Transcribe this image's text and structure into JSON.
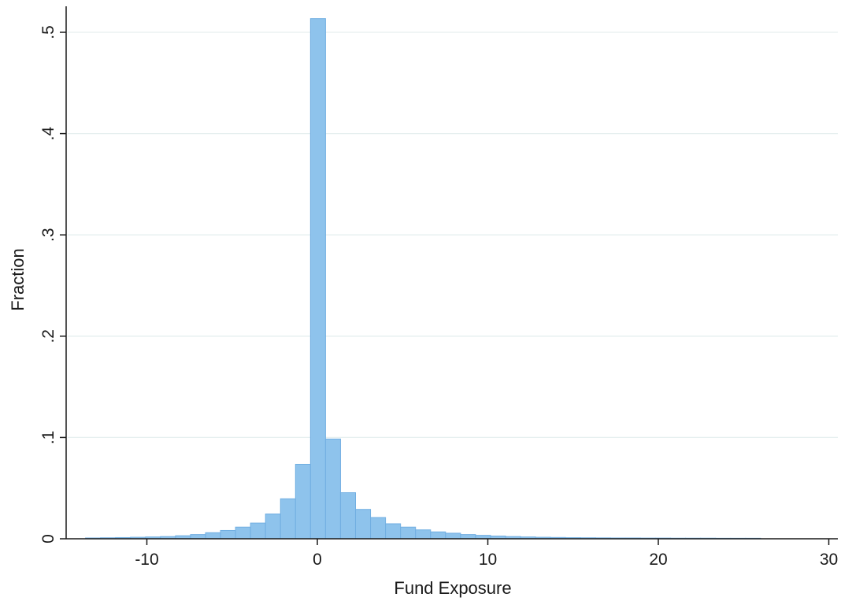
{
  "chart_data": {
    "type": "bar",
    "xlabel": "Fund Exposure",
    "ylabel": "Fraction",
    "xlim": [
      -14.1,
      30.4
    ],
    "ylim": [
      0,
      0.5
    ],
    "x_ticks": [
      -10,
      0,
      10,
      20,
      30
    ],
    "x_tick_labels": [
      "-10",
      "0",
      "10",
      "20",
      "30"
    ],
    "y_ticks": [
      0,
      0.1,
      0.2,
      0.3,
      0.4,
      0.5
    ],
    "y_tick_labels": [
      "0",
      ".1",
      ".2",
      ".3",
      ".4",
      ".5"
    ],
    "grid": "horizontal",
    "bin_width": 0.88,
    "bins_start": [
      -13.6,
      -12.72,
      -11.84,
      -10.96,
      -10.08,
      -9.2,
      -8.32,
      -7.44,
      -6.56,
      -5.68,
      -4.8,
      -3.92,
      -3.04,
      -2.16,
      -1.28,
      -0.4,
      0.48,
      1.36,
      2.24,
      3.12,
      4.0,
      4.88,
      5.76,
      6.64,
      7.52,
      8.4,
      9.28,
      10.16,
      11.04,
      11.92,
      12.8,
      13.68,
      14.56,
      15.44,
      16.32,
      17.2,
      18.08,
      18.96,
      19.84,
      20.72,
      21.6,
      22.48,
      23.36,
      24.24,
      25.12
    ],
    "values": [
      0.0008,
      0.001,
      0.0012,
      0.0015,
      0.0018,
      0.0022,
      0.003,
      0.0042,
      0.006,
      0.0082,
      0.0115,
      0.0155,
      0.0245,
      0.0395,
      0.0735,
      0.5135,
      0.0985,
      0.0455,
      0.029,
      0.021,
      0.0148,
      0.0115,
      0.0088,
      0.0068,
      0.0055,
      0.0042,
      0.0034,
      0.0027,
      0.0022,
      0.0018,
      0.0015,
      0.0013,
      0.0011,
      0.001,
      0.0009,
      0.0008,
      0.0008,
      0.0007,
      0.0007,
      0.0006,
      0.0006,
      0.0006,
      0.0005,
      0.0005,
      0.0005
    ],
    "bar_color": "#8ec3ec",
    "bar_edge_color": "#72afe2"
  }
}
